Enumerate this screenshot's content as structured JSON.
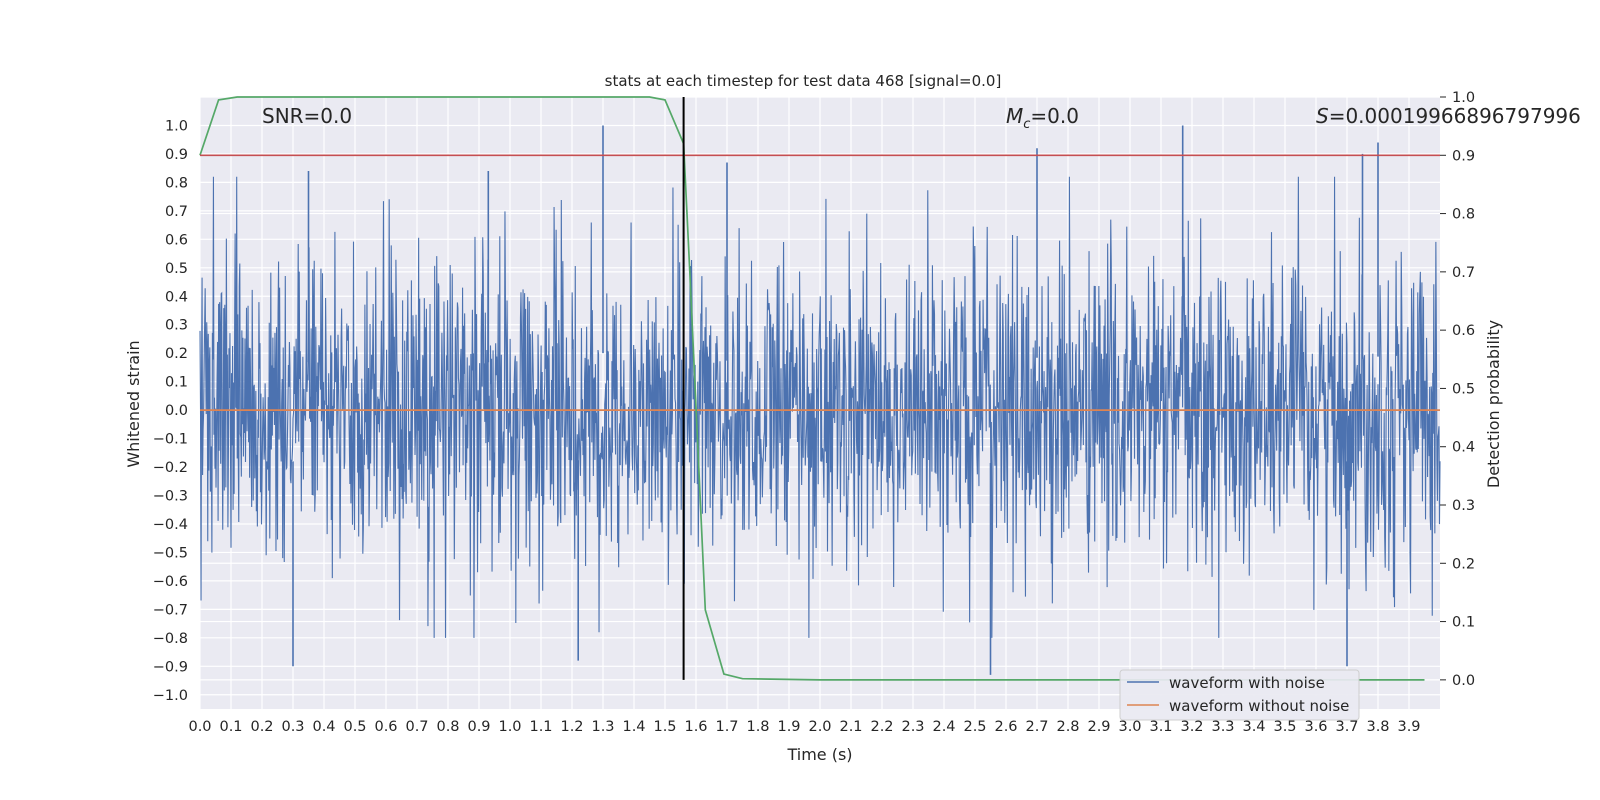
{
  "chart_data": {
    "type": "line",
    "title": "stats at each timestep for test data 468 [signal=0.0]",
    "xlabel": "Time (s)",
    "ylabel_left": "Whitened strain",
    "ylabel_right": "Detection probability",
    "xlim": [
      0.0,
      4.0
    ],
    "ylim_left": [
      -1.05,
      1.1
    ],
    "ylim_right": [
      -0.05,
      1.0
    ],
    "x_ticks": [
      "0.0",
      "0.1",
      "0.2",
      "0.3",
      "0.4",
      "0.5",
      "0.6",
      "0.7",
      "0.8",
      "0.9",
      "1.0",
      "1.1",
      "1.2",
      "1.3",
      "1.4",
      "1.5",
      "1.6",
      "1.7",
      "1.8",
      "1.9",
      "2.0",
      "2.1",
      "2.2",
      "2.3",
      "2.4",
      "2.5",
      "2.6",
      "2.7",
      "2.8",
      "2.9",
      "3.0",
      "3.1",
      "3.2",
      "3.3",
      "3.4",
      "3.5",
      "3.6",
      "3.7",
      "3.8",
      "3.9"
    ],
    "y_ticks_left": [
      "1.0",
      "0.9",
      "0.8",
      "0.7",
      "0.6",
      "0.5",
      "0.4",
      "0.3",
      "0.2",
      "0.1",
      "0.0",
      "−0.1",
      "−0.2",
      "−0.3",
      "−0.4",
      "−0.5",
      "−0.6",
      "−0.7",
      "−0.8",
      "−0.9",
      "−1.0"
    ],
    "y_ticks_right": [
      "1.0",
      "0.9",
      "0.8",
      "0.7",
      "0.6",
      "0.5",
      "0.4",
      "0.3",
      "0.2",
      "0.1",
      "0.0"
    ],
    "grid": true,
    "background": "#eaeaf2",
    "annotations": {
      "snr": "SNR=0.0",
      "mc_sym": "M",
      "mc_sub": "c",
      "mc_val": "=0.0",
      "s_sym": "S",
      "s_val": "=0.00019966896797996"
    },
    "legend": {
      "placement": "lower-right",
      "entries": [
        {
          "label": "waveform with noise",
          "color": "#4c72b0"
        },
        {
          "label": "waveform without noise",
          "color": "#dd8452"
        }
      ]
    },
    "series": [
      {
        "name": "waveform with noise",
        "axis": "left",
        "color": "#4c72b0",
        "style": "dense-noise",
        "approx_range": [
          -0.93,
          1.0
        ],
        "peaks": [
          {
            "x": 1.3,
            "y": 1.0
          },
          {
            "x": 3.17,
            "y": 1.0
          },
          {
            "x": 3.8,
            "y": 0.94
          },
          {
            "x": 2.7,
            "y": 0.92
          },
          {
            "x": 3.75,
            "y": 0.9
          },
          {
            "x": 0.35,
            "y": 0.84
          },
          {
            "x": 0.93,
            "y": 0.84
          },
          {
            "x": 1.7,
            "y": 0.87
          },
          {
            "x": 0.3,
            "y": -0.9
          },
          {
            "x": 2.55,
            "y": -0.93
          },
          {
            "x": 3.7,
            "y": -0.9
          },
          {
            "x": 1.22,
            "y": -0.88
          }
        ]
      },
      {
        "name": "waveform without noise",
        "axis": "left",
        "color": "#dd8452",
        "x": [
          0.0,
          4.0
        ],
        "y": [
          0.0,
          0.0
        ]
      },
      {
        "axis": "right",
        "color": "#55a868",
        "x": [
          0.0,
          0.06,
          0.12,
          0.2,
          0.5,
          1.0,
          1.3,
          1.45,
          1.5,
          1.56,
          1.58,
          1.63,
          1.69,
          1.75,
          2.0,
          3.0,
          3.95
        ],
        "y": [
          0.9,
          0.995,
          1.0,
          1.0,
          1.0,
          1.0,
          1.0,
          1.0,
          0.995,
          0.92,
          0.7,
          0.12,
          0.01,
          0.002,
          0.0,
          0.0,
          0.0
        ]
      },
      {
        "axis": "right",
        "color": "#c44e52",
        "style": "threshold",
        "x": [
          0.0,
          4.0
        ],
        "y": [
          0.9,
          0.9
        ]
      },
      {
        "axis": "right",
        "color": "#000000",
        "style": "vertical-marker",
        "x": [
          1.56,
          1.56
        ],
        "y": [
          0.0,
          1.0
        ]
      }
    ]
  }
}
